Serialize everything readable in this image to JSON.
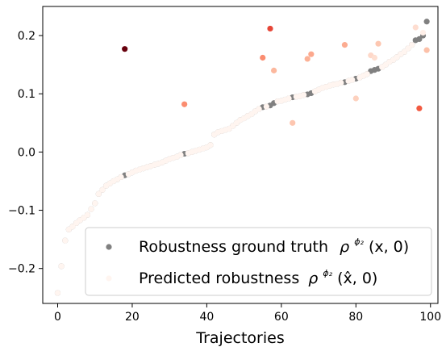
{
  "chart_data": {
    "type": "scatter",
    "xlabel": "Trajectories",
    "ylabel": "",
    "xlim": [
      -4,
      102
    ],
    "ylim": [
      -0.26,
      0.25
    ],
    "x_ticks": [
      "0",
      "20",
      "40",
      "60",
      "80",
      "100"
    ],
    "y_ticks": [
      "−0.2",
      "−0.1",
      "0.0",
      "0.1",
      "0.2"
    ],
    "grid": false,
    "legend": "lower-right",
    "colors": {
      "ground_truth": "#808080",
      "pred_low": "#fff5f0",
      "pred_high": "#67000d"
    },
    "series": [
      {
        "name": "Robustness ground truth  ρ^{ϕ₂}(x, 0)",
        "legend_main": "Robustness ground truth",
        "legend_math": "ρ",
        "legend_sup": "ϕ₂",
        "legend_args": "(x, 0)",
        "x": [
          0,
          1,
          2,
          3,
          4,
          5,
          6,
          7,
          8,
          9,
          10,
          11,
          12,
          13,
          14,
          15,
          16,
          17,
          18,
          19,
          20,
          21,
          22,
          23,
          24,
          25,
          26,
          27,
          28,
          29,
          30,
          31,
          32,
          33,
          34,
          35,
          36,
          37,
          38,
          39,
          40,
          41,
          42,
          43,
          44,
          45,
          46,
          47,
          48,
          49,
          50,
          51,
          52,
          53,
          54,
          55,
          56,
          57,
          58,
          59,
          60,
          61,
          62,
          63,
          64,
          65,
          66,
          67,
          68,
          69,
          70,
          71,
          72,
          73,
          74,
          75,
          76,
          77,
          78,
          79,
          80,
          81,
          82,
          83,
          84,
          85,
          86,
          87,
          88,
          89,
          90,
          91,
          92,
          93,
          94,
          95,
          96,
          97,
          98,
          99
        ],
        "y": [
          -0.242,
          -0.196,
          -0.152,
          -0.133,
          -0.128,
          -0.122,
          -0.117,
          -0.113,
          -0.108,
          -0.098,
          -0.088,
          -0.072,
          -0.065,
          -0.058,
          -0.054,
          -0.05,
          -0.047,
          -0.043,
          -0.04,
          -0.038,
          -0.035,
          -0.032,
          -0.03,
          -0.028,
          -0.026,
          -0.024,
          -0.022,
          -0.02,
          -0.018,
          -0.015,
          -0.012,
          -0.01,
          -0.008,
          -0.005,
          -0.003,
          -0.002,
          0.0,
          0.002,
          0.004,
          0.006,
          0.008,
          0.012,
          0.03,
          0.034,
          0.036,
          0.038,
          0.04,
          0.045,
          0.05,
          0.055,
          0.058,
          0.062,
          0.065,
          0.07,
          0.074,
          0.077,
          0.078,
          0.08,
          0.084,
          0.087,
          0.088,
          0.09,
          0.092,
          0.094,
          0.095,
          0.096,
          0.098,
          0.099,
          0.101,
          0.104,
          0.107,
          0.11,
          0.112,
          0.114,
          0.116,
          0.117,
          0.119,
          0.12,
          0.122,
          0.124,
          0.126,
          0.128,
          0.131,
          0.134,
          0.139,
          0.141,
          0.143,
          0.146,
          0.15,
          0.155,
          0.158,
          0.163,
          0.168,
          0.172,
          0.178,
          0.184,
          0.192,
          0.194,
          0.2,
          0.224
        ]
      },
      {
        "name": "Predicted robustness  ρ^{ϕ₂}(x̂, 0)",
        "legend_main": "Predicted robustness",
        "legend_math": "ρ",
        "legend_sup": "ϕ₂",
        "legend_args": "(x̂, 0)",
        "x": [
          0,
          1,
          2,
          3,
          4,
          5,
          6,
          7,
          8,
          9,
          10,
          11,
          12,
          13,
          14,
          15,
          16,
          17,
          18,
          19,
          20,
          21,
          22,
          23,
          24,
          25,
          26,
          27,
          28,
          29,
          30,
          31,
          32,
          33,
          34,
          35,
          36,
          37,
          38,
          39,
          40,
          41,
          42,
          43,
          44,
          45,
          46,
          47,
          48,
          49,
          50,
          51,
          52,
          53,
          54,
          55,
          56,
          57,
          58,
          59,
          60,
          61,
          62,
          63,
          64,
          65,
          66,
          67,
          68,
          69,
          70,
          71,
          72,
          73,
          74,
          75,
          76,
          77,
          78,
          79,
          80,
          81,
          82,
          83,
          84,
          85,
          86,
          87,
          88,
          89,
          90,
          91,
          92,
          93,
          94,
          95,
          96,
          97,
          98,
          99
        ],
        "y": [
          -0.242,
          -0.196,
          -0.152,
          -0.133,
          -0.128,
          -0.122,
          -0.117,
          -0.113,
          -0.108,
          -0.098,
          -0.088,
          -0.072,
          -0.065,
          -0.058,
          -0.054,
          -0.05,
          -0.047,
          -0.043,
          0.177,
          -0.038,
          -0.035,
          -0.032,
          -0.03,
          -0.028,
          -0.026,
          -0.024,
          -0.022,
          -0.02,
          -0.018,
          -0.015,
          -0.012,
          -0.01,
          -0.008,
          -0.005,
          0.082,
          -0.002,
          0.0,
          0.002,
          0.004,
          0.006,
          0.008,
          0.012,
          0.03,
          0.034,
          0.036,
          0.038,
          0.04,
          0.045,
          0.05,
          0.055,
          0.058,
          0.062,
          0.065,
          0.07,
          0.074,
          0.162,
          0.078,
          0.212,
          0.14,
          0.087,
          0.088,
          0.09,
          0.092,
          0.05,
          0.095,
          0.096,
          0.098,
          0.16,
          0.168,
          0.104,
          0.107,
          0.11,
          0.112,
          0.114,
          0.116,
          0.117,
          0.119,
          0.184,
          0.122,
          0.124,
          0.092,
          0.128,
          0.131,
          0.134,
          0.166,
          0.162,
          0.186,
          0.146,
          0.15,
          0.155,
          0.158,
          0.163,
          0.168,
          0.172,
          0.178,
          0.184,
          0.214,
          0.075,
          0.205,
          0.175
        ],
        "error": [
          0,
          0,
          0,
          0,
          0,
          0,
          0,
          0,
          0,
          0,
          0,
          0,
          0,
          0,
          0,
          0,
          0,
          0,
          0.217,
          0,
          0,
          0,
          0,
          0,
          0,
          0,
          0,
          0,
          0,
          0,
          0,
          0,
          0,
          0,
          0.085,
          0,
          0,
          0,
          0,
          0,
          0,
          0,
          0,
          0,
          0,
          0,
          0,
          0,
          0,
          0,
          0,
          0,
          0,
          0,
          0,
          0.085,
          0,
          0.132,
          0.056,
          0,
          0,
          0,
          0,
          0.044,
          0,
          0,
          0,
          0.061,
          0.067,
          0,
          0,
          0,
          0,
          0,
          0,
          0,
          0,
          0.064,
          0,
          0,
          0.034,
          0,
          0,
          0,
          0.027,
          0.021,
          0.043,
          0,
          0,
          0,
          0,
          0,
          0,
          0,
          0,
          0,
          0.022,
          0.119,
          0.005,
          0.049
        ]
      }
    ]
  }
}
